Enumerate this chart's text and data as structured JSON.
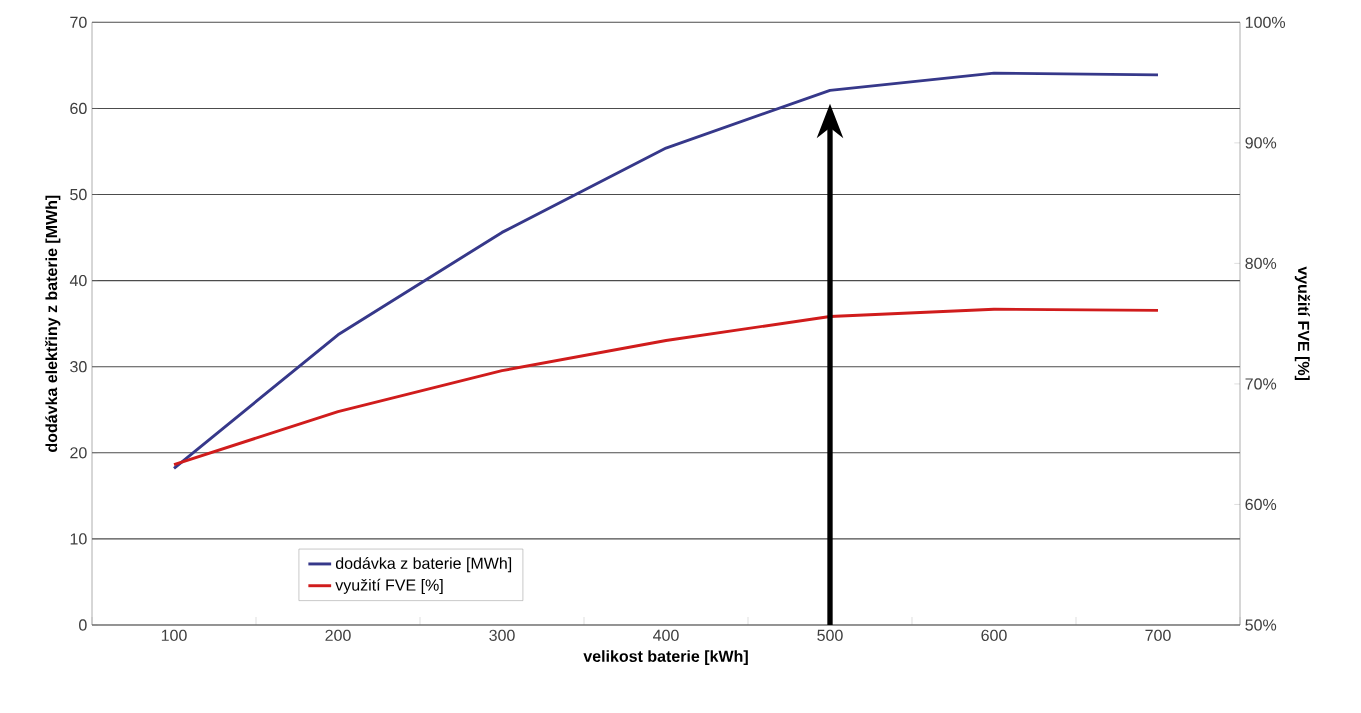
{
  "chart_data": {
    "type": "line",
    "categories": [
      "100",
      "200",
      "300",
      "400",
      "500",
      "600",
      "700"
    ],
    "series": [
      {
        "name": "dodávka z baterie [MWh]",
        "color": "#36388a",
        "values": [
          18.2,
          33.7,
          45.6,
          55.4,
          62.1,
          64.1,
          63.9
        ]
      },
      {
        "name": "využití FVE [%]",
        "color": "#d01c1c",
        "axis": "y2",
        "values": [
          63.3,
          67.7,
          71.1,
          73.6,
          75.6,
          76.2,
          76.1
        ]
      }
    ],
    "xlabel": "velikost baterie [kWh]",
    "ylabel": "dodávka elektřiny z baterie [MWh]",
    "y2label": "využití FVE [%]",
    "ylim": [
      0,
      70
    ],
    "yticks": [
      0,
      10,
      20,
      30,
      40,
      50,
      60,
      70
    ],
    "y2lim": [
      50,
      100
    ],
    "y2ticks": [
      {
        "value": 50,
        "label": "50%"
      },
      {
        "value": 60,
        "label": "60%"
      },
      {
        "value": 70,
        "label": "70%"
      },
      {
        "value": 80,
        "label": "80%"
      },
      {
        "value": 90,
        "label": "90%"
      },
      {
        "value": 100,
        "label": "100%"
      }
    ],
    "ref_lines": [
      {
        "axis": "x",
        "value": "500",
        "color": "#000000"
      }
    ],
    "grid": "y",
    "legend": "bottom left",
    "marker": "none",
    "line_style": "solid"
  }
}
